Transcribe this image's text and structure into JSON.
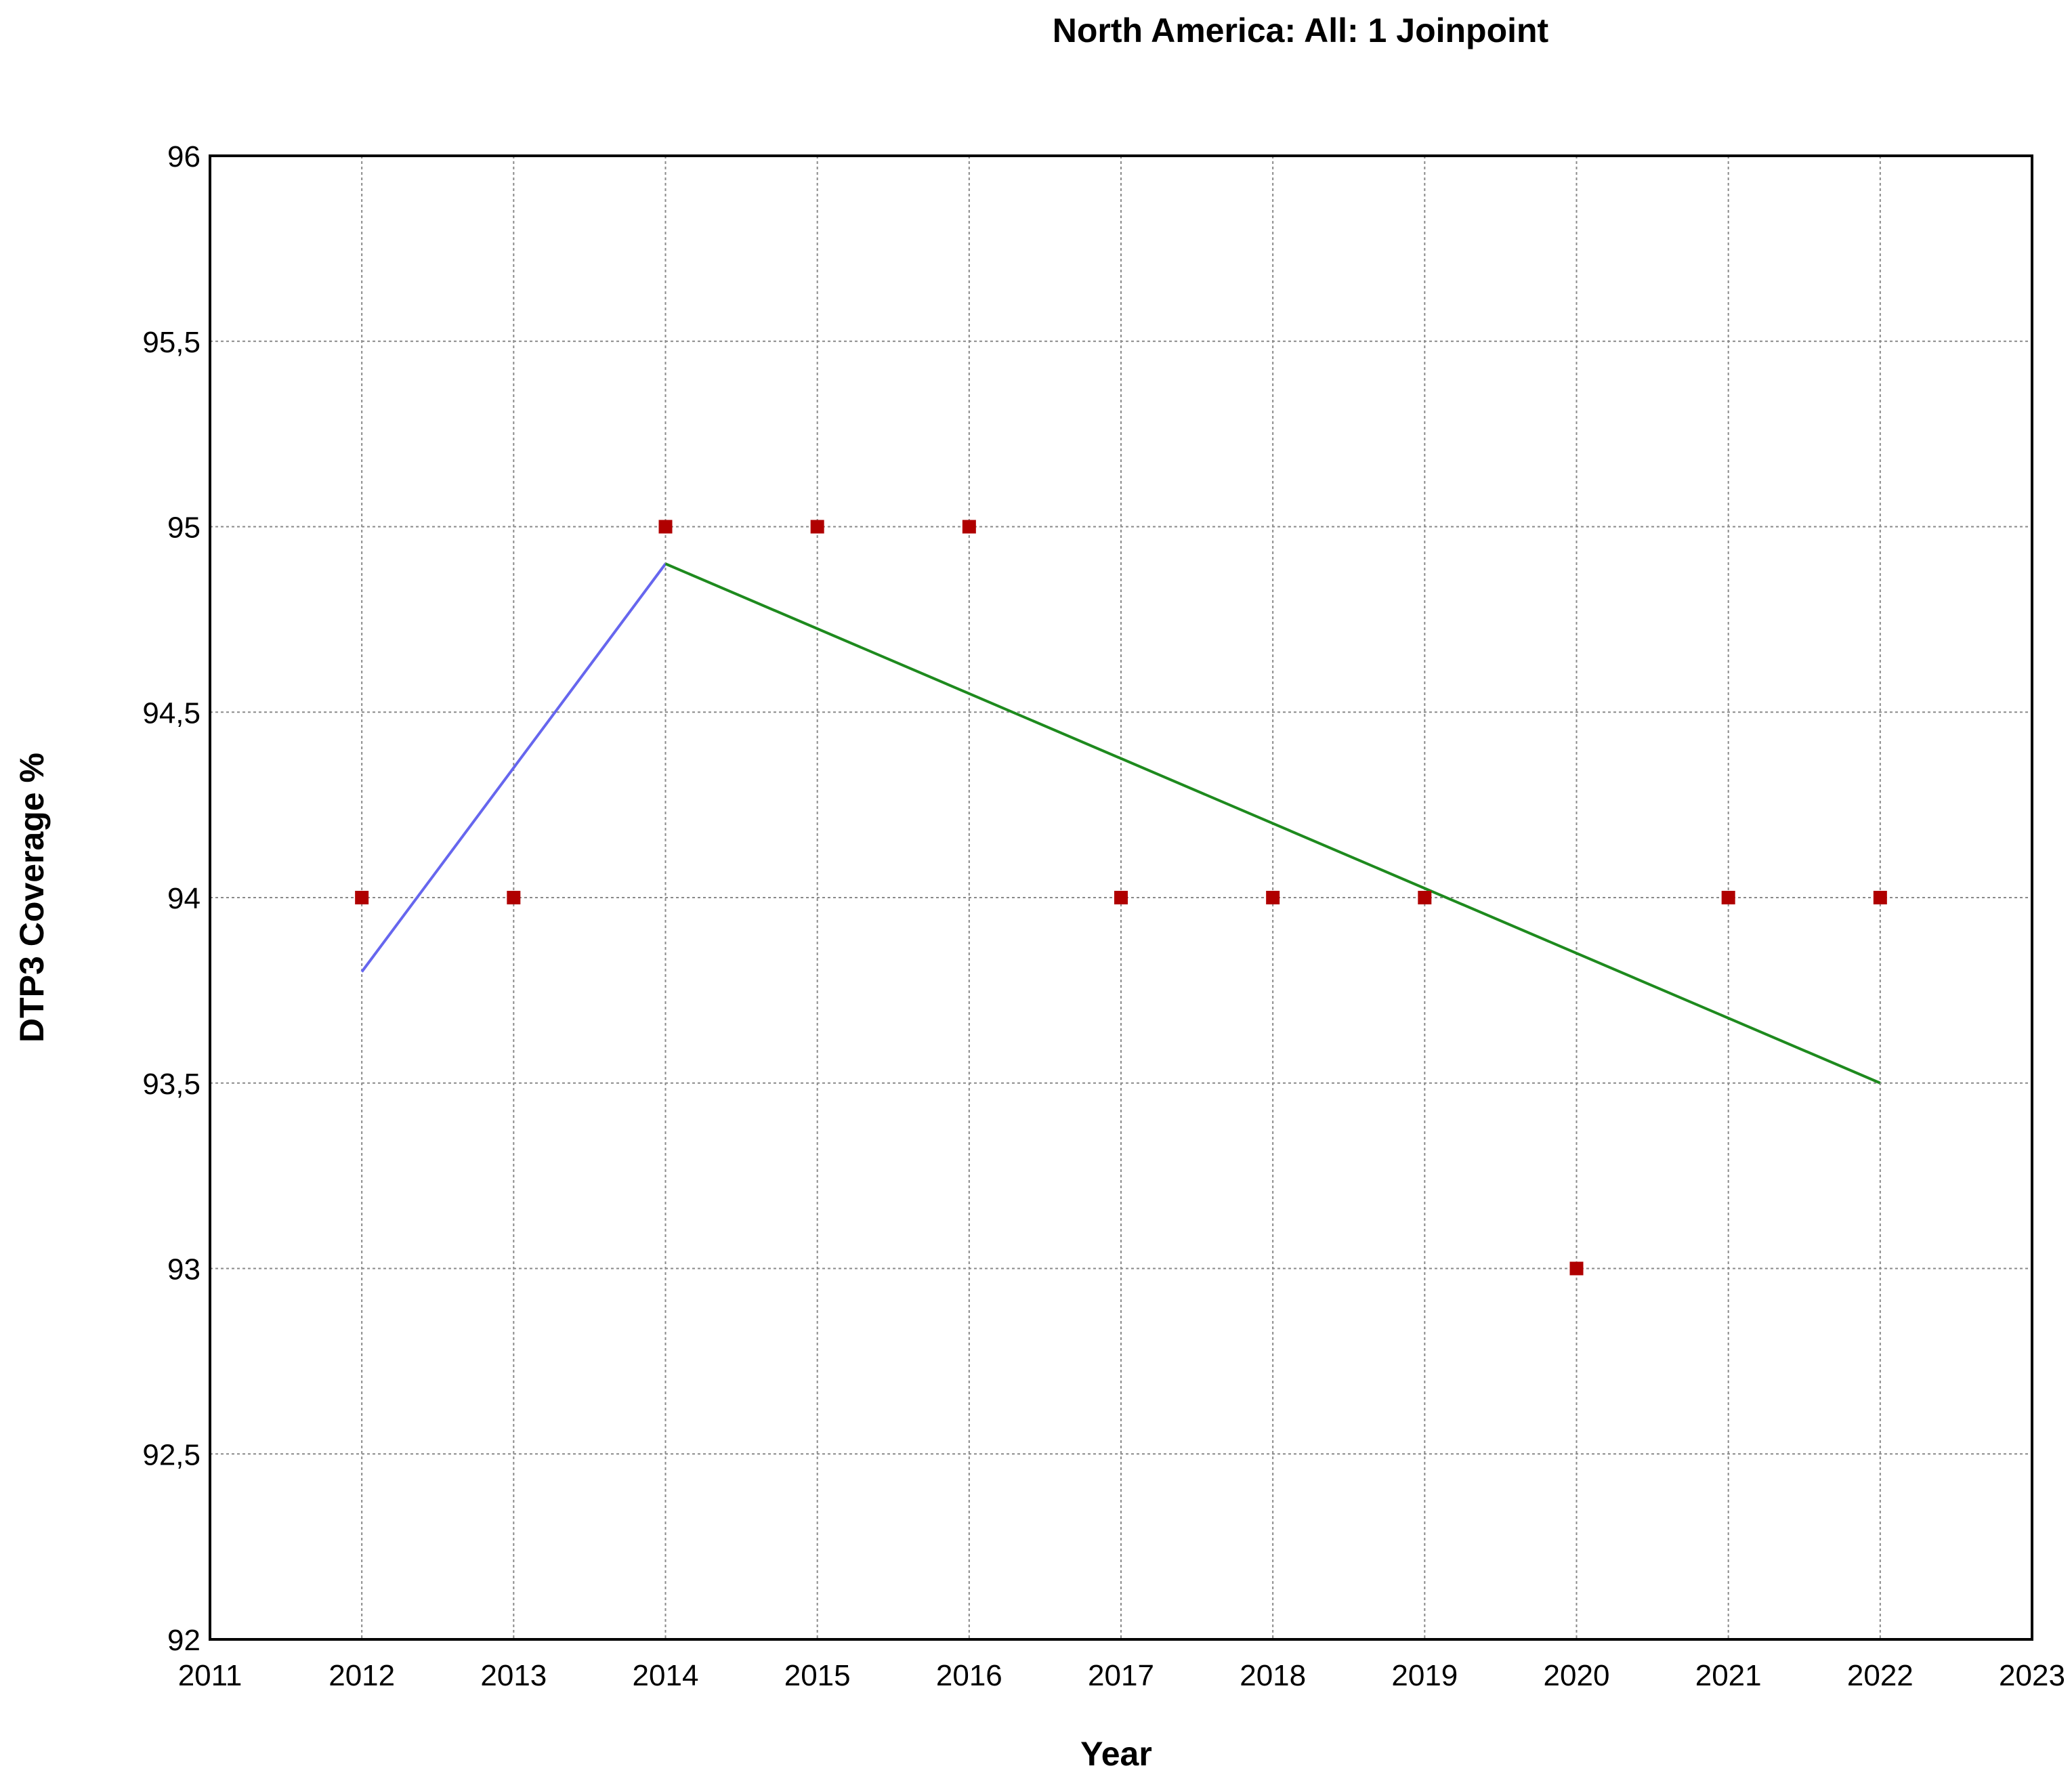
{
  "chart_data": {
    "type": "scatter",
    "title": "North America: All: 1 Joinpoint",
    "xlabel": "Year",
    "ylabel": "DTP3 Coverage %",
    "xlim": [
      2011,
      2023
    ],
    "ylim": [
      92,
      96
    ],
    "x_ticks": [
      2011,
      2012,
      2013,
      2014,
      2015,
      2016,
      2017,
      2018,
      2019,
      2020,
      2021,
      2022,
      2023
    ],
    "y_ticks": [
      92,
      92.5,
      93,
      93.5,
      94,
      94.5,
      95,
      95.5,
      96
    ],
    "y_tick_labels": [
      "92",
      "92,5",
      "93",
      "93,5",
      "94",
      "94,5",
      "95",
      "95,5",
      "96"
    ],
    "grid": true,
    "observed": {
      "color": "#b00000",
      "x": [
        2012,
        2013,
        2014,
        2015,
        2016,
        2017,
        2018,
        2019,
        2020,
        2021,
        2022
      ],
      "y": [
        94,
        94,
        95,
        95,
        95,
        94,
        94,
        94,
        93,
        94,
        94
      ]
    },
    "segments": [
      {
        "color": "#6666ee",
        "x": [
          2012,
          2014
        ],
        "y": [
          93.8,
          94.9
        ]
      },
      {
        "color": "#1e8a1e",
        "x": [
          2014,
          2022
        ],
        "y": [
          94.9,
          93.5
        ]
      }
    ]
  }
}
